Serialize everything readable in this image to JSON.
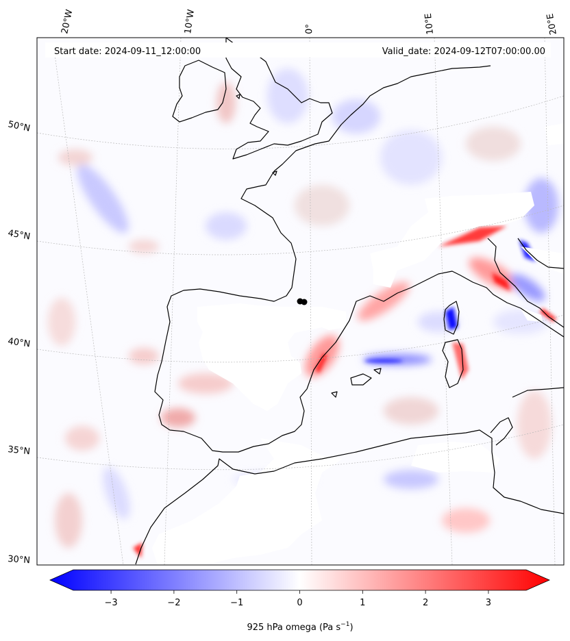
{
  "map": {
    "start_label": "Start date: 2024-09-11_12:00:00",
    "valid_label": "Valid_date: 2024-09-12T07:00:00.00",
    "lon_labels": [
      "20°W",
      "10°W",
      "0°",
      "10°E",
      "20°E"
    ],
    "lat_labels": [
      "50°N",
      "45°N",
      "40°N",
      "35°N",
      "30°N"
    ],
    "colorbar_ticks": [
      "−3",
      "−2",
      "−1",
      "0",
      "1",
      "2",
      "3"
    ],
    "colorbar_title_prefix": "925 hPa omega (Pa s",
    "colorbar_title_exp": "−1",
    "colorbar_title_suffix": ")"
  },
  "colors": {
    "negative": "#0000ff",
    "zero": "#ffffff",
    "positive": "#ff0000",
    "coastline": "#000000"
  },
  "chart_data": {
    "type": "heatmap",
    "variable": "925 hPa omega",
    "units": "Pa s^-1",
    "colormap": "bwr",
    "colorbar_range": [
      -3.6,
      3.6
    ],
    "colorbar_ticks": [
      -3,
      -2,
      -1,
      0,
      1,
      2,
      3
    ],
    "colorbar_extend": "both",
    "lon_range": [
      -20,
      20
    ],
    "lat_range": [
      30,
      54
    ],
    "gridlines": true
  }
}
